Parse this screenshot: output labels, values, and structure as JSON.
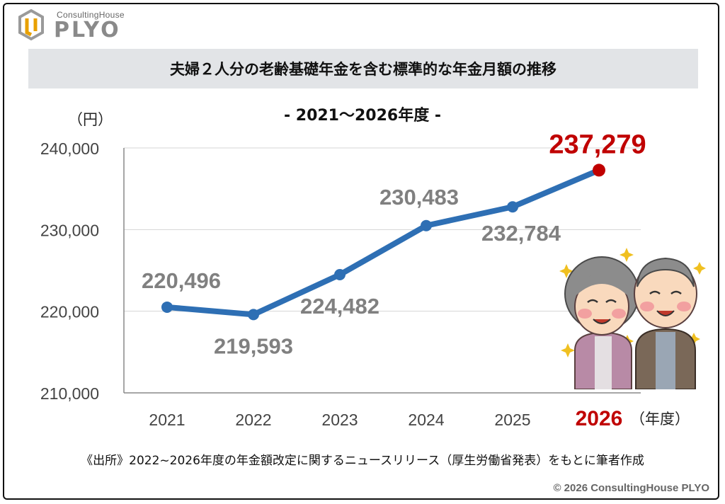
{
  "brand": {
    "small": "ConsultingHouse",
    "big": "PLYO"
  },
  "title": "夫婦２人分の老齢基礎年金を含む標準的な年金月額の推移",
  "subtitle": "- 2021～2026年度 -",
  "source": "《出所》2022~2026年度の年金額改定に関するニュースリリース（厚生労働省発表）をもとに筆者作成",
  "copyright": "© 2026 ConsultingHouse PLYO",
  "colors": {
    "line": "#2e6fb4",
    "highlight": "#c00000",
    "label": "#808080",
    "grid": "#d4d4d4",
    "title_bg": "#e2e4e7"
  },
  "illustration": {
    "icon": "elderly-couple-illustration"
  },
  "chart_data": {
    "type": "line",
    "title": "- 2021～2026年度 -",
    "ylabel": "（円）",
    "xlabel": "（年度）",
    "x": [
      "2021",
      "2022",
      "2023",
      "2024",
      "2025",
      "2026"
    ],
    "yticks": [
      "210,000",
      "220,000",
      "230,000",
      "240,000"
    ],
    "ylim": [
      210000,
      240000
    ],
    "grid": true,
    "highlight_last": true,
    "series": [
      {
        "values": [
          220496,
          219593,
          224482,
          230483,
          232784,
          237279
        ],
        "labels": [
          "220,496",
          "219,593",
          "224,482",
          "230,483",
          "232,784",
          "237,279"
        ]
      }
    ]
  }
}
